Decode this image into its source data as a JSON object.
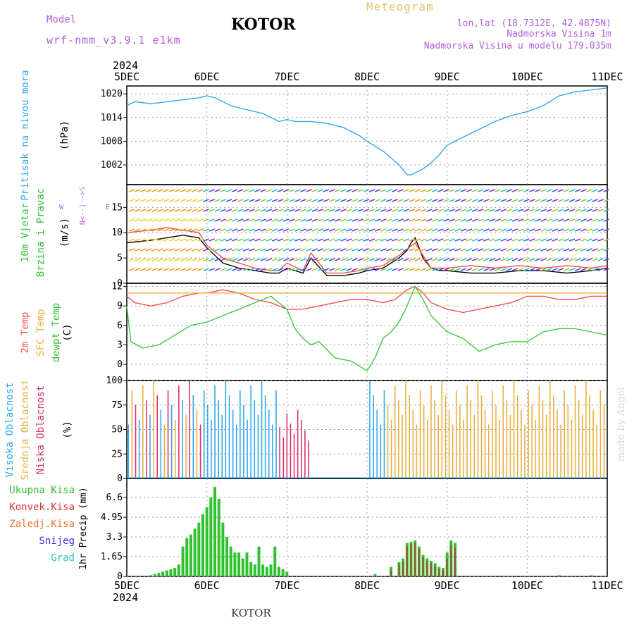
{
  "header": {
    "model_label": "Model",
    "model_name": "wrf-nmm_v3.9.1 e1km",
    "station": "KOTOR",
    "meteogram": "Meteogram",
    "lonlat": "lon,lat (18.7312E, 42.4875N)",
    "elev": "Nadmorska Visina 1m",
    "elev_model": "Nadmorska Visina u modelu 179.035m",
    "watermark": "made by Angel",
    "footer_station": "KOTOR",
    "colors": {
      "magenta": "#b060e0",
      "title_orange": "#e8c070",
      "label_purple": "#c040e0"
    }
  },
  "chart_data": [
    {
      "type": "line",
      "title": "",
      "ylabel": "Pritisak na nivou mora",
      "yunit": "(hPa)",
      "x_tick_labels": [
        "5DEC",
        "6DEC",
        "7DEC",
        "8DEC",
        "9DEC",
        "10DEC",
        "11DEC"
      ],
      "year": "2024",
      "ylim": [
        997,
        1022
      ],
      "yticks": [
        1002,
        1008,
        1014,
        1020
      ],
      "series": [
        {
          "name": "",
          "color": "#30a8f0",
          "x": [
            0,
            0.1,
            0.3,
            0.5,
            0.7,
            0.9,
            1.0,
            1.1,
            1.3,
            1.5,
            1.7,
            1.9,
            2.0,
            2.1,
            2.3,
            2.5,
            2.7,
            2.9,
            3.0,
            3.2,
            3.4,
            3.5,
            3.55,
            3.6,
            3.7,
            3.8,
            3.9,
            4.0,
            4.2,
            4.4,
            4.6,
            4.8,
            5.0,
            5.2,
            5.4,
            5.6,
            5.8,
            6.0
          ],
          "y": [
            1017,
            1018,
            1017.5,
            1018,
            1018.5,
            1019,
            1019.5,
            1019,
            1017,
            1016,
            1015,
            1013,
            1013.5,
            1013,
            1013,
            1012.5,
            1011.5,
            1009.5,
            1008,
            1005.5,
            1002,
            999.5,
            999.5,
            1000,
            1001,
            1002.5,
            1004.5,
            1007,
            1009,
            1011,
            1013,
            1014.5,
            1015.5,
            1017,
            1019.5,
            1020.5,
            1021,
            1021.5
          ]
        }
      ]
    },
    {
      "type": "line",
      "title": "",
      "ylabel": "10m Vjetar Brzina i Pravac",
      "yunit": "(m/s)",
      "compass_labels": [
        "W",
        "<--",
        "E",
        "N",
        "|",
        "S"
      ],
      "ylim": [
        0,
        19.5
      ],
      "yticks": [
        0,
        5,
        10,
        15
      ],
      "series": [
        {
          "name": "",
          "color": "#000000",
          "x": [
            0,
            0.3,
            0.5,
            0.7,
            0.9,
            1.0,
            1.2,
            1.4,
            1.6,
            1.8,
            1.9,
            2.0,
            2.2,
            2.3,
            2.5,
            2.7,
            2.9,
            3.0,
            3.2,
            3.3,
            3.4,
            3.5,
            3.55,
            3.6,
            3.7,
            3.8,
            3.9,
            4.0,
            4.3,
            4.6,
            4.9,
            5.2,
            5.5,
            5.8,
            6.0
          ],
          "y": [
            8,
            8.5,
            9,
            9.5,
            9,
            7,
            4,
            3,
            2.5,
            2,
            2,
            3,
            2,
            5,
            1.5,
            1.5,
            2,
            2.5,
            3,
            4,
            5,
            6.5,
            8,
            9,
            5,
            3,
            2.5,
            2.5,
            2,
            2,
            2.5,
            2.5,
            2,
            2.5,
            3
          ]
        },
        {
          "name": "",
          "color": "#f05050",
          "x": [
            0,
            0.3,
            0.5,
            0.7,
            0.9,
            1.0,
            1.2,
            1.4,
            1.6,
            1.8,
            1.9,
            2.0,
            2.2,
            2.3,
            2.5,
            2.7,
            2.9,
            3.0,
            3.2,
            3.4,
            3.6,
            3.8,
            4.0,
            4.3,
            4.6,
            4.9,
            5.2,
            5.5,
            5.8,
            6.0
          ],
          "y": [
            10,
            10.5,
            11,
            10.5,
            10,
            7.5,
            5,
            4,
            3,
            2.5,
            2.5,
            4,
            2.5,
            6,
            2,
            2,
            2.5,
            3,
            3.5,
            5.5,
            8,
            3,
            3,
            3.5,
            3,
            3.5,
            3,
            3.5,
            3,
            3.5
          ]
        }
      ]
    },
    {
      "type": "line",
      "title": "",
      "ylabel": "2m Temp / SFC Temp / dewpt Temp",
      "yunit": "(C)",
      "ylim": [
        -2.5,
        12.5
      ],
      "yticks": [
        0,
        3,
        6,
        9,
        12
      ],
      "series": [
        {
          "name": "2m Temp",
          "color": "#f05050",
          "x": [
            0,
            0.1,
            0.3,
            0.5,
            0.7,
            0.9,
            1.0,
            1.2,
            1.4,
            1.6,
            1.8,
            2.0,
            2.2,
            2.4,
            2.6,
            2.8,
            3.0,
            3.2,
            3.35,
            3.5,
            3.6,
            3.7,
            3.8,
            4.0,
            4.2,
            4.4,
            4.6,
            4.8,
            5.0,
            5.2,
            5.4,
            5.6,
            5.8,
            6.0
          ],
          "y": [
            10.5,
            9.5,
            9,
            9.5,
            10.5,
            11,
            11,
            11.5,
            11,
            10,
            9.5,
            8.5,
            8.5,
            9,
            9.5,
            10,
            10,
            9.5,
            10,
            11.5,
            12,
            11,
            9.5,
            8.5,
            8,
            8.5,
            9,
            9.5,
            10.5,
            10.5,
            10,
            10,
            10.5,
            10.5
          ]
        },
        {
          "name": "SFC Temp",
          "color": "#e8b040",
          "x": [
            0,
            6
          ],
          "y": [
            11,
            11
          ]
        },
        {
          "name": "dewpt Temp",
          "color": "#40c840",
          "x": [
            0,
            0.05,
            0.2,
            0.4,
            0.6,
            0.8,
            1.0,
            1.2,
            1.4,
            1.6,
            1.8,
            2.0,
            2.1,
            2.2,
            2.3,
            2.4,
            2.6,
            2.8,
            3.0,
            3.1,
            3.2,
            3.3,
            3.4,
            3.5,
            3.6,
            3.7,
            3.8,
            4.0,
            4.2,
            4.4,
            4.6,
            4.8,
            5.0,
            5.2,
            5.4,
            5.6,
            5.8,
            6.0
          ],
          "y": [
            9,
            3.5,
            2.5,
            3,
            4.5,
            6,
            6.5,
            7.5,
            8.5,
            9.5,
            10.5,
            8.5,
            5.5,
            4,
            3,
            3.5,
            1,
            0.5,
            -1,
            1,
            4,
            5,
            6.5,
            9,
            12,
            10,
            7.5,
            5,
            4,
            2,
            3,
            3.5,
            3.5,
            5,
            5.5,
            5.5,
            5,
            4.5
          ]
        }
      ]
    },
    {
      "type": "bar",
      "title": "",
      "ylabel": "Visoka Oblacnost / Srednja Oblacnost / Niska Oblacnost",
      "yunit": "(%)",
      "ylim": [
        0,
        100
      ],
      "yticks": [
        0,
        25,
        50,
        75,
        100
      ],
      "series": [
        {
          "name": "Visoka Oblacnost",
          "color": "#30a8f0"
        },
        {
          "name": "Srednja Oblacnost",
          "color": "#e8b040"
        },
        {
          "name": "Niska Oblacnost",
          "color": "#e03070"
        }
      ],
      "cloud_segments": [
        {
          "from": 0.0,
          "to": 1.0,
          "dominant": "mixed",
          "level": 100
        },
        {
          "from": 1.0,
          "to": 1.9,
          "dominant": "high",
          "level": 100
        },
        {
          "from": 1.9,
          "to": 2.3,
          "dominant": "low",
          "level": 70
        },
        {
          "from": 2.3,
          "to": 3.0,
          "dominant": "none",
          "level": 0
        },
        {
          "from": 3.0,
          "to": 3.25,
          "dominant": "high",
          "level": 100
        },
        {
          "from": 3.25,
          "to": 4.0,
          "dominant": "mid",
          "level": 100
        },
        {
          "from": 4.0,
          "to": 5.2,
          "dominant": "mid",
          "level": 100
        },
        {
          "from": 5.2,
          "to": 6.0,
          "dominant": "mid",
          "level": 100
        }
      ]
    },
    {
      "type": "bar",
      "title": "",
      "ylabel": "1hr Precip",
      "yunit": "(mm)",
      "legend": [
        "Ukupna Kisa",
        "Konvek.Kisa",
        "Zaledj.Kisa",
        "Snijeg",
        "Grad"
      ],
      "legend_colors": [
        "#30c030",
        "#e03030",
        "#f07020",
        "#3030e0",
        "#30c0c0"
      ],
      "ylim": [
        0,
        8.2
      ],
      "yticks": [
        0,
        1.65,
        3.3,
        4.95,
        6.6
      ],
      "x": [
        0.3,
        0.35,
        0.4,
        0.45,
        0.5,
        0.55,
        0.6,
        0.65,
        0.7,
        0.75,
        0.8,
        0.85,
        0.9,
        0.95,
        1.0,
        1.05,
        1.1,
        1.15,
        1.2,
        1.25,
        1.3,
        1.35,
        1.4,
        1.45,
        1.5,
        1.55,
        1.6,
        1.65,
        1.7,
        1.75,
        1.8,
        1.85,
        1.9,
        1.95,
        2.0,
        3.1,
        3.3,
        3.4,
        3.45,
        3.5,
        3.55,
        3.6,
        3.65,
        3.7,
        3.75,
        3.8,
        3.85,
        3.9,
        3.95,
        4.0,
        4.05,
        4.1,
        5.4,
        5.8
      ],
      "values": [
        0.1,
        0.2,
        0.3,
        0.4,
        0.5,
        0.6,
        0.7,
        1.0,
        2.5,
        3.2,
        3.5,
        4.0,
        4.5,
        5.2,
        5.8,
        6.6,
        7.5,
        6.5,
        4.5,
        3.3,
        2.5,
        2.0,
        2.0,
        1.5,
        2.0,
        1.2,
        1.0,
        2.5,
        1.0,
        0.8,
        1.0,
        2.5,
        0.8,
        0.6,
        0.4,
        0.2,
        0.8,
        1.2,
        1.5,
        2.8,
        2.9,
        3.0,
        2.5,
        1.8,
        1.5,
        1.3,
        1.1,
        0.8,
        0.7,
        2.0,
        3.0,
        2.8,
        0.1,
        0.1
      ],
      "convective": [
        0,
        0,
        0,
        0,
        0,
        0,
        0,
        0,
        0,
        0,
        0,
        0,
        0,
        0,
        0,
        0,
        0,
        0,
        0,
        0,
        0,
        0,
        0,
        0,
        0,
        0,
        0,
        0,
        0,
        0,
        0,
        0,
        0,
        0,
        0,
        0,
        0.5,
        1.0,
        1.2,
        2.5,
        2.7,
        2.8,
        2.3,
        1.6,
        1.3,
        1.1,
        0.9,
        0.6,
        0.5,
        1.5,
        2.6,
        2.4,
        0,
        0
      ]
    }
  ]
}
